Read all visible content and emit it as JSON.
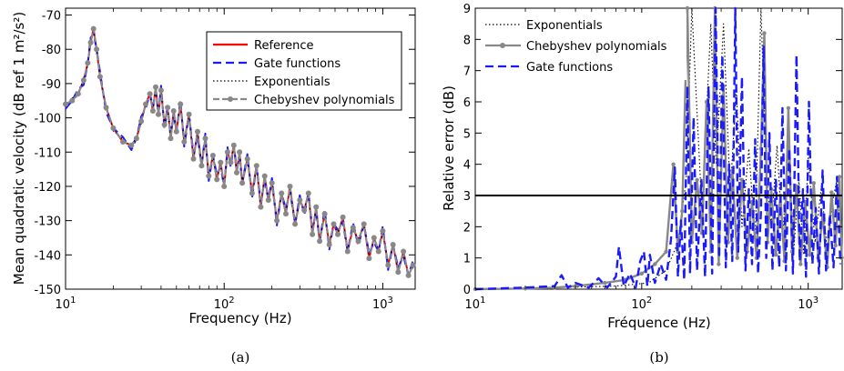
{
  "chart_data": [
    {
      "type": "line",
      "caption": "(a)",
      "xlabel": "Frequency (Hz)",
      "ylabel": "Mean quadratic velocity (dB ref 1 m²/s²)",
      "xscale": "log",
      "xlim": [
        10,
        1600
      ],
      "ylim": [
        -150,
        -68
      ],
      "xticks": [
        10,
        100,
        1000
      ],
      "xtick_labels": [
        "10^1",
        "10^2",
        "10^3"
      ],
      "yticks": [
        -150,
        -140,
        -130,
        -120,
        -110,
        -100,
        -90,
        -80,
        -70
      ],
      "ytick_labels": [
        "-150",
        "-140",
        "-130",
        "-120",
        "-110",
        "-100",
        "-90",
        "-80",
        "-70"
      ],
      "legend_position": "top-right",
      "series": [
        {
          "name": "Reference",
          "color": "#ff0000",
          "style": "solid"
        },
        {
          "name": "Gate functions",
          "color": "#1a1aff",
          "style": "dashed"
        },
        {
          "name": "Exponentials",
          "color": "#000000",
          "style": "dotted"
        },
        {
          "name": "Chebyshev polynomials",
          "color": "#888888",
          "style": "dash-dot-marker"
        }
      ],
      "points": {
        "x": [
          10,
          11,
          12,
          13,
          13.8,
          14.4,
          15,
          15.7,
          16.5,
          18,
          20,
          23,
          26,
          28,
          30,
          32,
          34,
          35.5,
          37,
          38.5,
          40,
          42,
          44,
          46,
          48,
          50,
          53,
          56,
          60,
          64,
          68,
          72,
          76,
          80,
          85,
          90,
          95,
          100,
          105,
          110,
          115,
          120,
          125,
          130,
          140,
          150,
          160,
          170,
          180,
          190,
          200,
          215,
          230,
          245,
          260,
          280,
          300,
          320,
          340,
          360,
          380,
          400,
          430,
          460,
          490,
          520,
          560,
          600,
          650,
          700,
          760,
          820,
          880,
          940,
          1000,
          1080,
          1160,
          1250,
          1350,
          1450,
          1550
        ],
        "y": [
          -96,
          -95,
          -93,
          -89,
          -84,
          -78,
          -74,
          -80,
          -88,
          -97,
          -103,
          -107,
          -108,
          -106,
          -101,
          -96,
          -93,
          -98,
          -91,
          -99,
          -92,
          -102,
          -97,
          -106,
          -98,
          -104,
          -96,
          -107,
          -99,
          -112,
          -104,
          -114,
          -106,
          -117,
          -111,
          -118,
          -113,
          -120,
          -110,
          -113,
          -108,
          -116,
          -110,
          -119,
          -112,
          -122,
          -114,
          -126,
          -117,
          -124,
          -119,
          -130,
          -122,
          -128,
          -120,
          -131,
          -124,
          -127,
          -122,
          -134,
          -126,
          -136,
          -128,
          -137,
          -131,
          -134,
          -129,
          -139,
          -132,
          -136,
          -131,
          -141,
          -135,
          -139,
          -133,
          -143,
          -137,
          -145,
          -139,
          -146,
          -143
        ]
      }
    },
    {
      "type": "line",
      "caption": "(b)",
      "xlabel": "Fréquence (Hz)",
      "ylabel": "Relative error (dB)",
      "xscale": "log",
      "xlim": [
        10,
        1600
      ],
      "ylim": [
        0,
        9
      ],
      "xticks": [
        10,
        100,
        1000
      ],
      "xtick_labels": [
        "10^1",
        "10^2",
        "10^3"
      ],
      "yticks": [
        0,
        1,
        2,
        3,
        4,
        5,
        6,
        7,
        8,
        9
      ],
      "ytick_labels": [
        "0",
        "1",
        "2",
        "3",
        "4",
        "5",
        "6",
        "7",
        "8",
        "9"
      ],
      "threshold_y": 3,
      "legend_position": "top-left",
      "series": [
        {
          "name": "Exponentials",
          "color": "#000000",
          "style": "dotted",
          "x": [
            10,
            30,
            70,
            110,
            140,
            165,
            185,
            200,
            230,
            260,
            280,
            310,
            340,
            370,
            400,
            440,
            480,
            520,
            560,
            600,
            650,
            700,
            760,
            820,
            880,
            940,
            1000,
            1100,
            1200,
            1300,
            1400,
            1500,
            1580
          ],
          "y": [
            0,
            0.05,
            0.1,
            0.2,
            0.6,
            1.5,
            3.5,
            9,
            2.5,
            8.5,
            4,
            8.5,
            3,
            6.5,
            2,
            4.5,
            1.5,
            9,
            3.8,
            2,
            4.6,
            1.6,
            4.4,
            1.3,
            3.5,
            1.1,
            4.2,
            1.5,
            3.3,
            1.2,
            2.8,
            3.6,
            1.5
          ]
        },
        {
          "name": "Chebyshev polynomials",
          "color": "#888888",
          "style": "solid-marker",
          "x": [
            10,
            20,
            30,
            40,
            60,
            80,
            100,
            120,
            140,
            155,
            165,
            175,
            188,
            200,
            215,
            230,
            245,
            260,
            275,
            290,
            310,
            330,
            350,
            375,
            400,
            430,
            460,
            490,
            520,
            545,
            570,
            600,
            640,
            680,
            720,
            760,
            800,
            850,
            900,
            960,
            1020,
            1080,
            1150,
            1220,
            1300,
            1380,
            1460,
            1540,
            1590
          ],
          "y": [
            0,
            0.02,
            0.05,
            0.1,
            0.2,
            0.3,
            0.5,
            0.8,
            1.2,
            4,
            1.2,
            2.5,
            9,
            1.5,
            3.5,
            1.8,
            6,
            1.2,
            9,
            0.8,
            6.5,
            1.5,
            3.8,
            1.0,
            3.5,
            1.2,
            2.8,
            1.0,
            4.5,
            8.2,
            1.5,
            3.2,
            1.1,
            3.0,
            0.9,
            5.8,
            1.2,
            3.3,
            0.8,
            2.8,
            1.1,
            3.4,
            1.0,
            2.4,
            0.7,
            3.1,
            1.4,
            3.6,
            1.0
          ]
        },
        {
          "name": "Gate functions",
          "color": "#1a1aff",
          "style": "dashed",
          "x": [
            10,
            20,
            30,
            33,
            36,
            40,
            48,
            55,
            62,
            70,
            73,
            78,
            85,
            92,
            98,
            103,
            108,
            112,
            120,
            130,
            140,
            150,
            158,
            165,
            172,
            180,
            188,
            195,
            205,
            215,
            228,
            240,
            252,
            265,
            278,
            292,
            305,
            320,
            335,
            350,
            365,
            380,
            400,
            420,
            440,
            460,
            480,
            500,
            520,
            540,
            560,
            585,
            610,
            640,
            670,
            700,
            735,
            770,
            810,
            850,
            890,
            930,
            970,
            1010,
            1060,
            1110,
            1160,
            1220,
            1280,
            1350,
            1420,
            1490,
            1560
          ],
          "y": [
            0,
            0.05,
            0.1,
            0.45,
            0.05,
            0.2,
            0.05,
            0.35,
            0.05,
            0.4,
            1.35,
            0.1,
            0.5,
            0.05,
            0.9,
            1.2,
            0.1,
            1.1,
            0.2,
            0.8,
            0.3,
            1.6,
            3.9,
            0.4,
            2.2,
            0.3,
            6.5,
            0.5,
            5.5,
            0.6,
            3.5,
            0.4,
            6.5,
            0.5,
            9,
            1.0,
            7.5,
            0.7,
            4.0,
            0.9,
            9.0,
            1.2,
            6.8,
            0.6,
            3.2,
            0.8,
            4.8,
            0.5,
            2.5,
            7.8,
            1.0,
            5.0,
            0.6,
            3.5,
            0.7,
            5.8,
            0.6,
            4.5,
            0.5,
            7.5,
            0.9,
            3.2,
            0.4,
            6.0,
            0.8,
            2.6,
            0.5,
            3.8,
            0.6,
            2.4,
            0.7,
            3.6,
            0.8
          ]
        }
      ]
    }
  ]
}
